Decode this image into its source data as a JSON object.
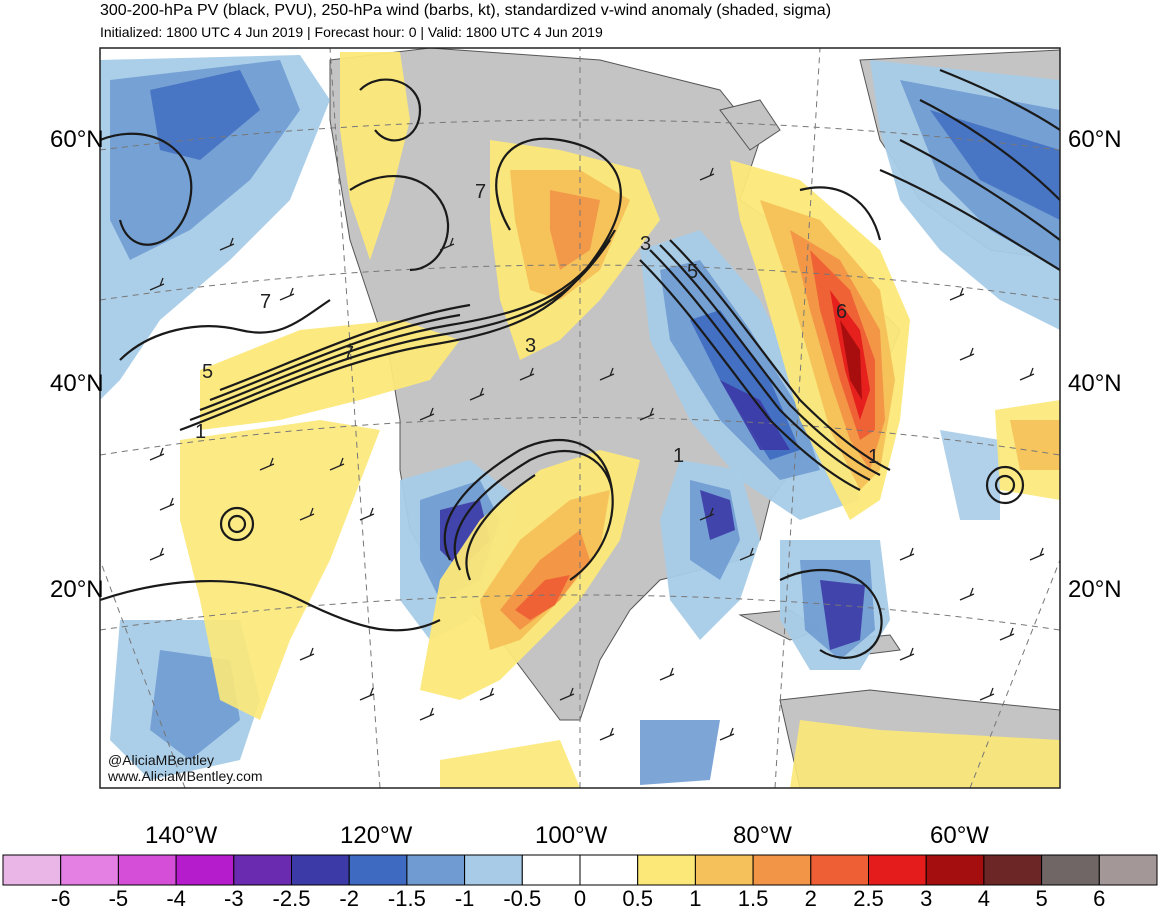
{
  "title": {
    "line1": "300-200-hPa PV (black, PVU), 250-hPa wind (barbs, kt), standardized v-wind anomaly (shaded, sigma)",
    "line2": "Initialized: 1800 UTC 4 Jun 2019 | Forecast hour: 0 | Valid: 1800 UTC 4 Jun 2019"
  },
  "lat_labels": [
    "60°N",
    "40°N",
    "20°N"
  ],
  "lon_labels": [
    "140°W",
    "120°W",
    "100°W",
    "80°W",
    "60°W"
  ],
  "contour_labels": [
    "7",
    "7",
    "5",
    "7",
    "1",
    "3",
    "3",
    "5",
    "1",
    "6",
    "1"
  ],
  "credits": [
    "@AliciaMBentley",
    "www.AliciaMBentley.com"
  ],
  "colorbar": {
    "labels": [
      "-6",
      "-5",
      "-4",
      "-3",
      "-2.5",
      "-2",
      "-1.5",
      "-1",
      "-0.5",
      "0",
      "0.5",
      "1",
      "1.5",
      "2",
      "2.5",
      "3",
      "4",
      "5",
      "6"
    ],
    "colors": [
      "#eab6e7",
      "#e47fe4",
      "#d54ed8",
      "#b41ccc",
      "#6a2bb0",
      "#3c3aa6",
      "#3e6ac1",
      "#6f9bd2",
      "#a8cce8",
      "#ffffff",
      "#ffffff",
      "#fce878",
      "#f5c15a",
      "#f29547",
      "#ee5f35",
      "#e41c1c",
      "#a50e0e",
      "#6d2626",
      "#706666",
      "#a39797"
    ]
  },
  "colors": {
    "land": "#c4c4c4",
    "ocean": "#ffffff",
    "contour": "#1a1a1a"
  }
}
